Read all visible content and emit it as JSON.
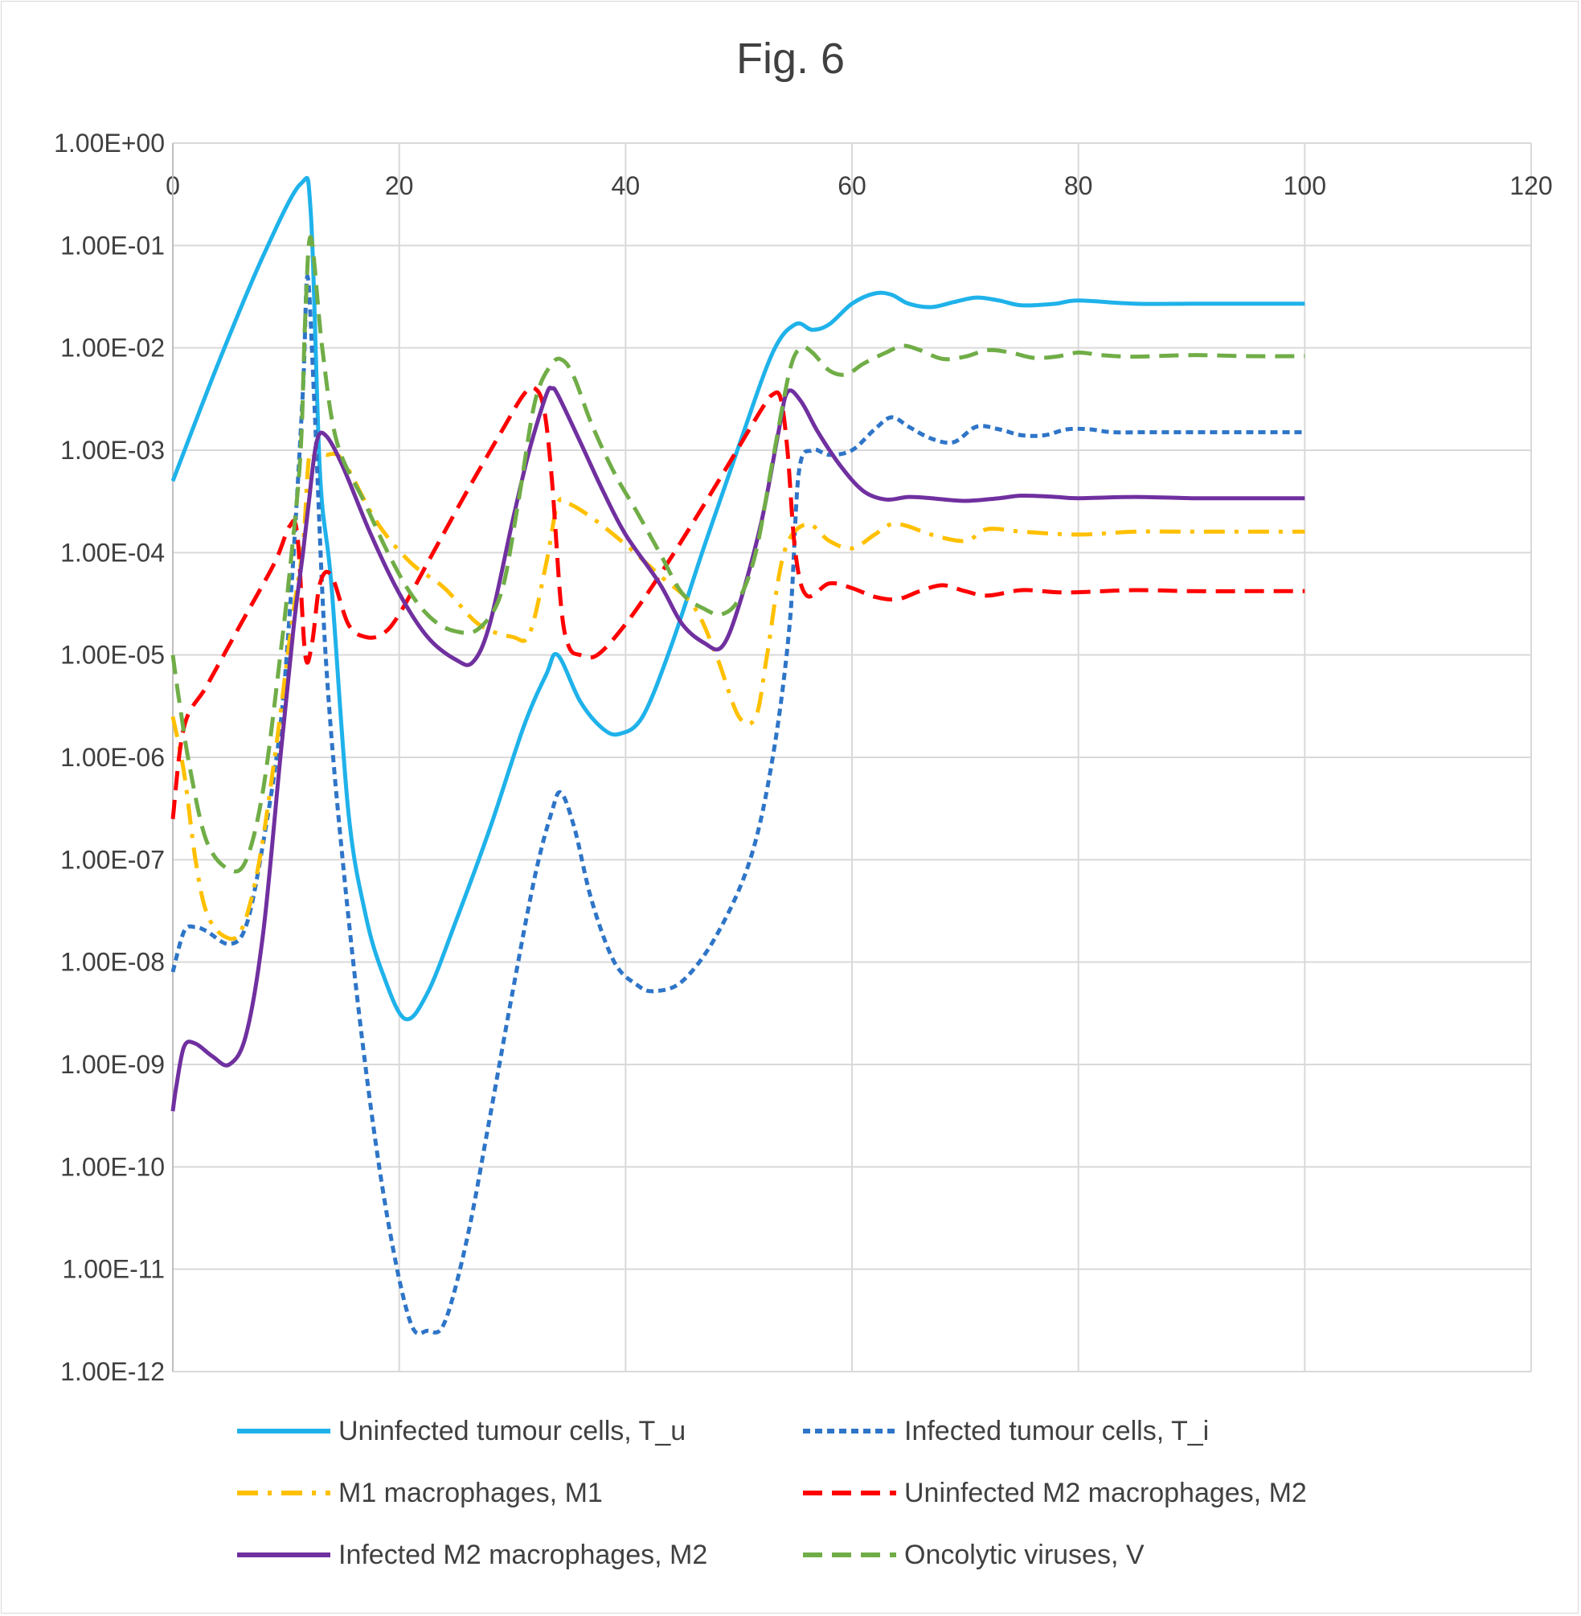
{
  "chart_data": {
    "type": "line",
    "title": "Fig. 6",
    "xlabel": "",
    "ylabel": "",
    "xlim": [
      0,
      120
    ],
    "ylim": [
      1e-12,
      1
    ],
    "y_scale": "log",
    "x_axis_position": "top",
    "grid": true,
    "legend_position": "bottom",
    "x_ticks": [
      "0",
      "20",
      "40",
      "60",
      "80",
      "100",
      "120"
    ],
    "y_ticks": [
      "1.00E+00",
      "1.00E-01",
      "1.00E-02",
      "1.00E-03",
      "1.00E-04",
      "1.00E-05",
      "1.00E-06",
      "1.00E-07",
      "1.00E-08",
      "1.00E-09",
      "1.00E-10",
      "1.00E-11",
      "1.00E-12"
    ],
    "series": [
      {
        "name": "Uninfected tumour cells, T_u",
        "color": "#1fb2ea",
        "style": "solid",
        "x": [
          0,
          4,
          8,
          11.3,
          12.2,
          13,
          14,
          15.5,
          17,
          18.5,
          20.5,
          22.5,
          25,
          28,
          31,
          33,
          34,
          36,
          38,
          39.5,
          41.5,
          44,
          47,
          50,
          53,
          55,
          56.5,
          58,
          60,
          62,
          63.5,
          65,
          67,
          69,
          71,
          73,
          75,
          78,
          80,
          85,
          90,
          95,
          100
        ],
        "y": [
          0.0005,
          0.007,
          0.08,
          0.4,
          0.2,
          0.0006,
          5e-05,
          3e-07,
          3e-08,
          8e-09,
          2.8e-09,
          5e-09,
          2.5e-08,
          2e-07,
          2e-06,
          6.5e-06,
          1e-05,
          3.5e-06,
          1.9e-06,
          1.7e-06,
          2.5e-06,
          1.2e-05,
          0.00012,
          0.0011,
          0.009,
          0.017,
          0.015,
          0.017,
          0.027,
          0.034,
          0.033,
          0.027,
          0.025,
          0.028,
          0.031,
          0.029,
          0.026,
          0.027,
          0.029,
          0.027,
          0.027,
          0.027,
          0.027
        ]
      },
      {
        "name": "Infected tumour cells, T_i",
        "color": "#2e75c8",
        "style": "dotted",
        "x": [
          0,
          1,
          2,
          3,
          5,
          6.5,
          8,
          9.5,
          10.5,
          11.5,
          11.9,
          12.5,
          13.5,
          15,
          17,
          19,
          21,
          22.5,
          24,
          26,
          28,
          30,
          32,
          33.5,
          34.3,
          35.5,
          37,
          39,
          41,
          42.5,
          45,
          48,
          51,
          53,
          54.5,
          55.3,
          56.5,
          58,
          60,
          62,
          63.5,
          65,
          67,
          69,
          71,
          73,
          75,
          77,
          79,
          81,
          83,
          86,
          90,
          95,
          100
        ],
        "y": [
          8e-09,
          2e-08,
          2.2e-08,
          2e-08,
          1.5e-08,
          2.3e-08,
          1.5e-07,
          2e-06,
          5e-05,
          0.004,
          0.05,
          0.003,
          1e-05,
          1e-07,
          1e-09,
          3e-11,
          3e-12,
          2.5e-12,
          3e-12,
          2e-11,
          3e-10,
          5e-09,
          7e-08,
          3e-07,
          4.5e-07,
          2e-07,
          4e-08,
          1e-08,
          6e-09,
          5.2e-09,
          6.5e-09,
          1.8e-08,
          1e-07,
          1e-06,
          2e-05,
          0.0006,
          0.001,
          0.0009,
          0.001,
          0.0016,
          0.0021,
          0.0017,
          0.0013,
          0.0012,
          0.0017,
          0.0016,
          0.0014,
          0.0014,
          0.0016,
          0.0016,
          0.0015,
          0.0015,
          0.0015,
          0.0015,
          0.0015
        ]
      },
      {
        "name": "M1 macrophages, M1",
        "color": "#ffc000",
        "style": "dashdot",
        "x": [
          0,
          1,
          2,
          3,
          4.5,
          6,
          7.5,
          9,
          10.5,
          11.5,
          12,
          12.5,
          13.5,
          15,
          18,
          21,
          24,
          27,
          30,
          31.5,
          33,
          34,
          35,
          37,
          40,
          43,
          46,
          48,
          50,
          51.5,
          52.5,
          54,
          56,
          58,
          60,
          62,
          63.5,
          65,
          67,
          70,
          72,
          75,
          80,
          85,
          90,
          95,
          100
        ],
        "y": [
          2.5e-06,
          7e-07,
          1e-07,
          3e-08,
          1.8e-08,
          2e-08,
          8e-08,
          1e-06,
          2e-05,
          0.00012,
          0.0008,
          0.0009,
          0.0009,
          0.0008,
          0.0002,
          8e-05,
          4.5e-05,
          2e-05,
          1.5e-05,
          1.6e-05,
          8e-05,
          0.0003,
          0.0003,
          0.00022,
          0.00012,
          6e-05,
          3e-05,
          1e-05,
          2.5e-06,
          2.5e-06,
          1e-05,
          0.0001,
          0.00019,
          0.00013,
          0.00011,
          0.00015,
          0.00019,
          0.00018,
          0.00015,
          0.00013,
          0.00017,
          0.00016,
          0.00015,
          0.00016,
          0.00016,
          0.00016,
          0.00016
        ]
      },
      {
        "name": "Uninfected M2 macrophages, M2",
        "color": "#ff0000",
        "style": "dashed",
        "x": [
          0,
          1,
          3,
          6,
          9,
          10.3,
          11,
          11.7,
          12.3,
          13,
          14,
          15.5,
          17,
          18.5,
          20,
          23,
          26,
          29,
          31,
          32,
          32.8,
          33.5,
          34.3,
          35,
          36,
          37.5,
          40,
          43,
          46,
          49,
          52,
          53,
          53.7,
          54.3,
          55,
          56,
          58,
          60,
          62,
          64,
          66,
          68,
          70,
          72,
          75,
          78,
          80,
          85,
          90,
          95,
          100
        ],
        "y": [
          2.5e-07,
          2e-06,
          5e-06,
          2e-05,
          8e-05,
          0.00018,
          0.00015,
          1e-05,
          1.3e-05,
          5e-05,
          6e-05,
          2e-05,
          1.5e-05,
          1.6e-05,
          2.5e-05,
          0.0001,
          0.0004,
          0.0015,
          0.0035,
          0.004,
          0.0025,
          0.0005,
          3e-05,
          1.2e-05,
          1e-05,
          1e-05,
          2e-05,
          6e-05,
          0.0002,
          0.0007,
          0.0025,
          0.0035,
          0.0032,
          0.001,
          0.0001,
          3.8e-05,
          5e-05,
          4.5e-05,
          3.7e-05,
          3.5e-05,
          4.2e-05,
          4.8e-05,
          4.2e-05,
          3.8e-05,
          4.3e-05,
          4.1e-05,
          4.1e-05,
          4.3e-05,
          4.2e-05,
          4.2e-05,
          4.2e-05
        ]
      },
      {
        "name": "Infected M2 macrophages, M2",
        "color": "#7030a0",
        "style": "solid",
        "x": [
          0,
          0.3,
          1,
          2,
          3.5,
          5,
          6.5,
          8,
          9.5,
          10.7,
          11.5,
          12,
          12.7,
          13.5,
          15,
          17.5,
          20,
          22.5,
          25,
          26.5,
          28,
          30,
          31.5,
          33,
          33.5,
          34,
          36,
          38,
          40,
          43,
          45,
          47,
          48.5,
          50,
          52,
          53.5,
          54.3,
          55.5,
          57,
          59,
          61,
          63,
          65,
          67,
          70,
          73,
          75,
          78,
          80,
          85,
          90,
          95,
          100
        ],
        "y": [
          3.5e-10,
          6e-10,
          1.5e-09,
          1.6e-09,
          1.2e-09,
          1e-09,
          2e-09,
          2e-08,
          1e-06,
          2e-05,
          0.0001,
          0.0003,
          0.0012,
          0.0014,
          0.0007,
          0.00015,
          4e-05,
          1.5e-05,
          9e-06,
          8.5e-06,
          2e-05,
          0.0002,
          0.001,
          0.0035,
          0.004,
          0.0035,
          0.0012,
          0.0004,
          0.00015,
          5e-05,
          2e-05,
          1.3e-05,
          1.2e-05,
          3e-05,
          0.0002,
          0.0015,
          0.0037,
          0.003,
          0.0015,
          0.0007,
          0.0004,
          0.00033,
          0.00035,
          0.00034,
          0.00032,
          0.00034,
          0.00036,
          0.00035,
          0.00034,
          0.00035,
          0.00034,
          0.00034,
          0.00034
        ]
      },
      {
        "name": "Oncolytic viruses, V",
        "color": "#70ad47",
        "style": "dashed",
        "x": [
          0,
          0.5,
          1.5,
          3,
          5,
          6.5,
          8,
          9.5,
          10.5,
          11.3,
          11.7,
          12.2,
          13.2,
          14.5,
          17,
          19,
          21,
          23,
          25,
          27,
          29,
          30.5,
          32,
          33.5,
          34.5,
          35.5,
          37,
          39,
          41,
          43,
          45,
          47,
          48.5,
          50,
          51.5,
          53,
          54.5,
          55.5,
          56.5,
          58,
          59.5,
          61,
          63,
          64.5,
          66,
          68,
          70,
          72,
          74,
          76,
          78,
          80,
          82,
          85,
          90,
          95,
          100
        ],
        "y": [
          1e-05,
          4e-06,
          8e-07,
          1.5e-07,
          8e-08,
          1e-07,
          5e-07,
          1e-05,
          0.0001,
          0.001,
          0.02,
          0.12,
          0.01,
          0.0012,
          0.0003,
          0.0001,
          4e-05,
          2.2e-05,
          1.7e-05,
          1.8e-05,
          4e-05,
          0.0003,
          0.003,
          0.007,
          0.0075,
          0.005,
          0.0018,
          0.0006,
          0.00025,
          0.0001,
          4e-05,
          2.8e-05,
          2.5e-05,
          3.5e-05,
          0.0001,
          0.0008,
          0.006,
          0.01,
          0.009,
          0.006,
          0.0055,
          0.007,
          0.009,
          0.0105,
          0.0095,
          0.0078,
          0.0082,
          0.0095,
          0.009,
          0.008,
          0.0082,
          0.009,
          0.0085,
          0.0082,
          0.0085,
          0.0083,
          0.0083
        ]
      }
    ]
  }
}
